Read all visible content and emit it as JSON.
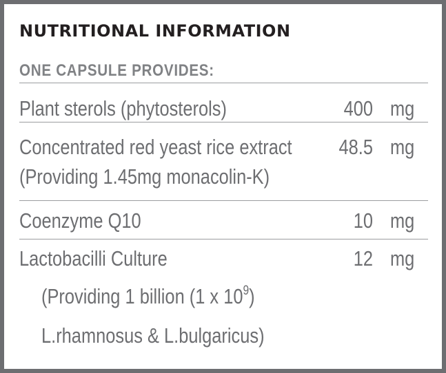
{
  "panel": {
    "title": "NUTRITIONAL INFORMATION",
    "subtitle": "ONE CAPSULE PROVIDES:"
  },
  "rows": [
    {
      "name": "Plant sterols (phytosterols)",
      "amount": "400",
      "unit": "mg"
    },
    {
      "name": "Concentrated red yeast rice extract",
      "note": "(Providing 1.45mg monacolin-K)",
      "amount": "48.5",
      "unit": "mg"
    },
    {
      "name": "Coenzyme Q10",
      "amount": "10",
      "unit": "mg"
    },
    {
      "name": "Lactobacilli Culture",
      "note1_prefix": "(Providing 1 billion (1 x 10",
      "note1_exp": "9",
      "note1_suffix": ")",
      "note2": "L.rhamnosus & L.bulgaricus)",
      "amount": "12",
      "unit": "mg"
    }
  ],
  "colors": {
    "border": "#6d6e71",
    "title": "#231f20",
    "subtitle": "#808285",
    "body_text": "#6d6e71",
    "rule": "#9b9c9f"
  }
}
